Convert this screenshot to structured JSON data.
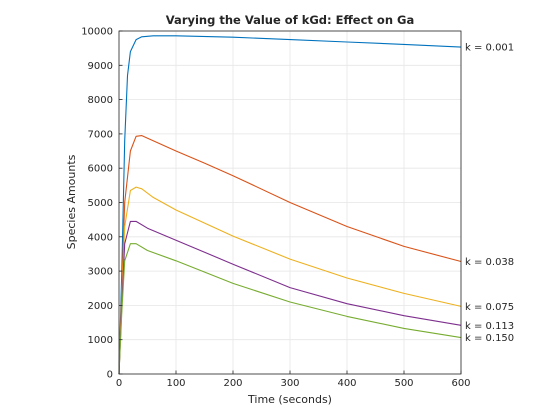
{
  "chart_data": {
    "type": "line",
    "title": "Varying the Value of kGd: Effect on Ga",
    "xlabel": "Time (seconds)",
    "ylabel": "Species Amounts",
    "xlim": [
      0,
      600
    ],
    "ylim": [
      0,
      10000
    ],
    "xticks": [
      "0",
      "100",
      "200",
      "300",
      "400",
      "500",
      "600"
    ],
    "yticks": [
      "0",
      "1000",
      "2000",
      "3000",
      "4000",
      "5000",
      "6000",
      "7000",
      "8000",
      "9000",
      "10000"
    ],
    "grid": true,
    "series": [
      {
        "name": "k = 0.001",
        "color": "#0072BD",
        "points": [
          [
            0,
            0
          ],
          [
            5,
            3000
          ],
          [
            10,
            6800
          ],
          [
            15,
            8700
          ],
          [
            20,
            9400
          ],
          [
            30,
            9750
          ],
          [
            40,
            9830
          ],
          [
            60,
            9860
          ],
          [
            100,
            9860
          ],
          [
            200,
            9820
          ],
          [
            300,
            9750
          ],
          [
            400,
            9680
          ],
          [
            500,
            9610
          ],
          [
            600,
            9530
          ]
        ]
      },
      {
        "name": "k = 0.038",
        "color": "#D95319",
        "points": [
          [
            0,
            0
          ],
          [
            5,
            2500
          ],
          [
            10,
            5000
          ],
          [
            20,
            6500
          ],
          [
            30,
            6930
          ],
          [
            40,
            6950
          ],
          [
            60,
            6800
          ],
          [
            100,
            6500
          ],
          [
            150,
            6150
          ],
          [
            200,
            5780
          ],
          [
            300,
            5000
          ],
          [
            400,
            4300
          ],
          [
            500,
            3720
          ],
          [
            600,
            3280
          ]
        ]
      },
      {
        "name": "k = 0.075",
        "color": "#EDB120",
        "points": [
          [
            0,
            0
          ],
          [
            5,
            2200
          ],
          [
            10,
            4300
          ],
          [
            20,
            5350
          ],
          [
            30,
            5450
          ],
          [
            40,
            5400
          ],
          [
            60,
            5150
          ],
          [
            100,
            4780
          ],
          [
            200,
            4020
          ],
          [
            300,
            3350
          ],
          [
            400,
            2800
          ],
          [
            500,
            2350
          ],
          [
            600,
            1970
          ]
        ]
      },
      {
        "name": "k = 0.113",
        "color": "#7E2F8E",
        "points": [
          [
            0,
            0
          ],
          [
            5,
            2000
          ],
          [
            10,
            3800
          ],
          [
            20,
            4450
          ],
          [
            30,
            4450
          ],
          [
            50,
            4250
          ],
          [
            100,
            3900
          ],
          [
            200,
            3200
          ],
          [
            300,
            2520
          ],
          [
            400,
            2050
          ],
          [
            500,
            1700
          ],
          [
            600,
            1420
          ]
        ]
      },
      {
        "name": "k = 0.150",
        "color": "#77AC30",
        "points": [
          [
            0,
            0
          ],
          [
            5,
            1800
          ],
          [
            10,
            3300
          ],
          [
            20,
            3800
          ],
          [
            30,
            3800
          ],
          [
            50,
            3600
          ],
          [
            100,
            3300
          ],
          [
            200,
            2640
          ],
          [
            300,
            2100
          ],
          [
            400,
            1680
          ],
          [
            500,
            1330
          ],
          [
            600,
            1060
          ]
        ]
      }
    ]
  }
}
